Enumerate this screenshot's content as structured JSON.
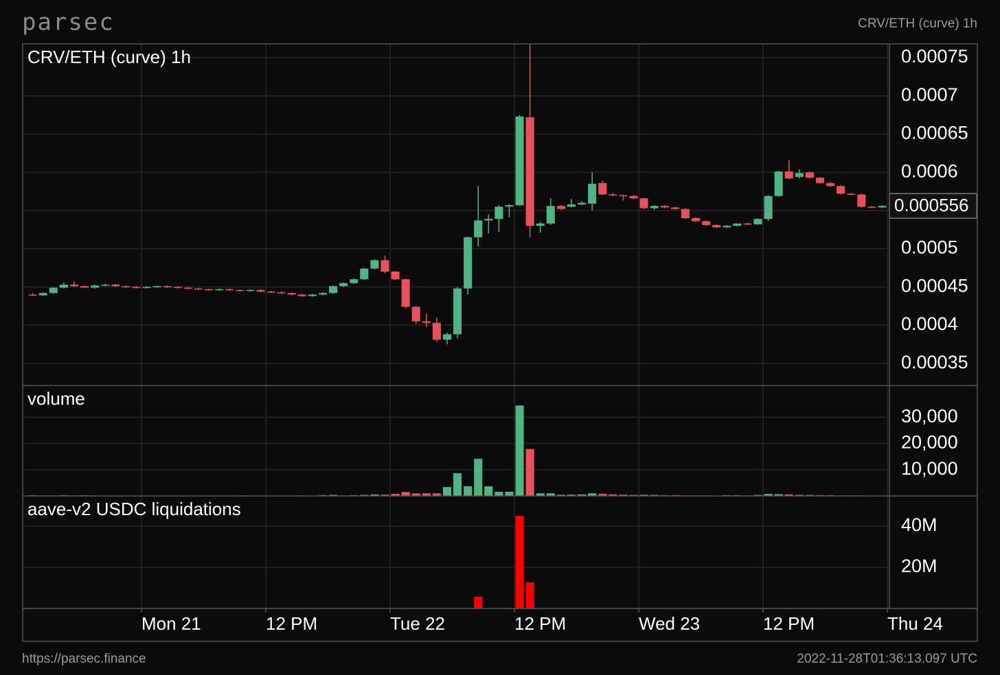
{
  "header": {
    "logo": "parsec",
    "pair": "CRV/ETH (curve) 1h"
  },
  "footer": {
    "url": "https://parsec.finance",
    "timestamp": "2022-11-28T01:36:13.097 UTC"
  },
  "xaxis": {
    "xlim": [
      -11.47,
      72.13
    ],
    "xticks": [
      {
        "value": 0,
        "label": "Mon 21"
      },
      {
        "value": 12,
        "label": "12 PM"
      },
      {
        "value": 24,
        "label": "Tue 22"
      },
      {
        "value": 36,
        "label": "12 PM"
      },
      {
        "value": 48,
        "label": "Wed 23"
      },
      {
        "value": 60,
        "label": "12 PM"
      },
      {
        "value": 72,
        "label": "Thu 24"
      }
    ]
  },
  "chart_data": [
    {
      "type": "candlestick",
      "title": "CRV/ETH (curve) 1h",
      "up_color": "#4fb383",
      "down_color": "#e8505b",
      "grid": true,
      "ylim": [
        0.000321,
        0.000768
      ],
      "yticks": [
        0.00035,
        0.0004,
        0.00045,
        0.0005,
        0.00055,
        0.0006,
        0.00065,
        0.0007,
        0.00075
      ],
      "last_price": 0.000556,
      "x": [
        -11,
        -10,
        -9,
        -8,
        -7,
        -6,
        -5,
        -4,
        -3,
        -2,
        -1,
        0,
        1,
        2,
        3,
        4,
        5,
        6,
        7,
        8,
        9,
        10,
        11,
        12,
        13,
        14,
        15,
        16,
        17,
        18,
        19,
        20,
        21,
        22,
        23,
        24,
        25,
        26,
        27,
        28,
        29,
        30,
        31,
        32,
        33,
        34,
        35,
        36,
        37,
        38,
        39,
        40,
        41,
        42,
        43,
        44,
        45,
        46,
        47,
        48,
        49,
        50,
        51,
        52,
        53,
        54,
        55,
        56,
        57,
        58,
        59,
        60,
        61,
        62,
        63,
        64,
        65,
        66,
        67,
        68,
        69,
        70,
        71
      ],
      "open": [
        0.00044,
        0.000439,
        0.000442,
        0.000449,
        0.000453,
        0.000451,
        0.000449,
        0.000452,
        0.000453,
        0.000451,
        0.00045,
        0.000449,
        0.00045,
        0.000451,
        0.00045,
        0.000449,
        0.000448,
        0.000447,
        0.000446,
        0.000447,
        0.000446,
        0.000445,
        0.000446,
        0.000444,
        0.000443,
        0.000442,
        0.00044,
        0.000438,
        0.00044,
        0.000442,
        0.000451,
        0.000455,
        0.00046,
        0.000474,
        0.000485,
        0.00047,
        0.00046,
        0.000424,
        0.000405,
        0.000403,
        0.000381,
        0.000388,
        0.000448,
        0.000515,
        0.000537,
        0.000539,
        0.000555,
        0.000557,
        0.000672,
        0.00053,
        0.000533,
        0.000556,
        0.000555,
        0.000558,
        0.000559,
        0.000586,
        0.000571,
        0.00057,
        0.000569,
        0.000566,
        0.000553,
        0.000556,
        0.000554,
        0.000552,
        0.00054,
        0.000536,
        0.000531,
        0.000528,
        0.00053,
        0.000533,
        0.000532,
        0.000539,
        0.000569,
        0.000601,
        0.000594,
        0.0006,
        0.000593,
        0.000586,
        0.000582,
        0.000572,
        0.000571,
        0.000555,
        0.000554
      ],
      "high": [
        0.000442,
        0.000443,
        0.000449,
        0.000456,
        0.000457,
        0.000452,
        0.000453,
        0.000454,
        0.000454,
        0.000452,
        0.000451,
        0.000451,
        0.000452,
        0.000452,
        0.000451,
        0.00045,
        0.000449,
        0.000448,
        0.000448,
        0.000448,
        0.000447,
        0.000447,
        0.000447,
        0.000445,
        0.000444,
        0.000443,
        0.000441,
        0.000441,
        0.000443,
        0.000452,
        0.000456,
        0.000461,
        0.000475,
        0.000486,
        0.000491,
        0.000471,
        0.000461,
        0.000425,
        0.000415,
        0.00041,
        0.00039,
        0.00045,
        0.000516,
        0.000582,
        0.000545,
        0.000557,
        0.000558,
        0.000675,
        0.000768,
        0.000535,
        0.000566,
        0.000557,
        0.000565,
        0.000562,
        0.0006,
        0.000589,
        0.000573,
        0.000571,
        0.00057,
        0.000567,
        0.000557,
        0.000557,
        0.000555,
        0.000553,
        0.000541,
        0.000537,
        0.000532,
        0.000531,
        0.000533,
        0.000534,
        0.00054,
        0.00057,
        0.000602,
        0.000616,
        0.000604,
        0.000601,
        0.000594,
        0.000587,
        0.000583,
        0.000573,
        0.000572,
        0.000556,
        0.000557
      ],
      "low": [
        0.000438,
        0.000438,
        0.000441,
        0.000448,
        0.00045,
        0.000449,
        0.000448,
        0.000451,
        0.00045,
        0.000449,
        0.000448,
        0.000448,
        0.000449,
        0.000449,
        0.000448,
        0.000447,
        0.000446,
        0.000445,
        0.000445,
        0.000445,
        0.000444,
        0.000444,
        0.000443,
        0.000442,
        0.000441,
        0.000439,
        0.000437,
        0.000437,
        0.000439,
        0.000441,
        0.00045,
        0.000454,
        0.000459,
        0.000473,
        0.000468,
        0.000459,
        0.000422,
        0.000402,
        0.000398,
        0.000378,
        0.000375,
        0.000383,
        0.00044,
        0.000503,
        0.00052,
        0.000522,
        0.000541,
        0.000556,
        0.000515,
        0.000521,
        0.000531,
        0.000551,
        0.000554,
        0.000557,
        0.00055,
        0.00057,
        0.000569,
        0.000563,
        0.000565,
        0.000552,
        0.000551,
        0.000553,
        0.000551,
        0.000539,
        0.000535,
        0.00053,
        0.000527,
        0.000527,
        0.000529,
        0.000531,
        0.000531,
        0.000536,
        0.000568,
        0.000591,
        0.000592,
        0.000592,
        0.000585,
        0.000581,
        0.000571,
        0.00057,
        0.000554,
        0.000553,
        0.000553
      ],
      "close": [
        0.000439,
        0.000442,
        0.000449,
        0.000453,
        0.000451,
        0.000449,
        0.000452,
        0.000453,
        0.000451,
        0.00045,
        0.000449,
        0.00045,
        0.000451,
        0.00045,
        0.000449,
        0.000448,
        0.000447,
        0.000446,
        0.000447,
        0.000446,
        0.000445,
        0.000446,
        0.000444,
        0.000443,
        0.000442,
        0.00044,
        0.000438,
        0.00044,
        0.000442,
        0.000451,
        0.000455,
        0.00046,
        0.000474,
        0.000485,
        0.00047,
        0.00046,
        0.000424,
        0.000405,
        0.000403,
        0.000381,
        0.000388,
        0.000448,
        0.000515,
        0.000537,
        0.000539,
        0.000555,
        0.000557,
        0.000673,
        0.00053,
        0.000533,
        0.000556,
        0.000552,
        0.000558,
        0.00056,
        0.000585,
        0.000571,
        0.00057,
        0.000569,
        0.000566,
        0.000553,
        0.000556,
        0.000554,
        0.000552,
        0.00054,
        0.000536,
        0.000531,
        0.000528,
        0.00053,
        0.000533,
        0.000532,
        0.000539,
        0.000569,
        0.000601,
        0.000592,
        0.000599,
        0.000593,
        0.000586,
        0.000582,
        0.000572,
        0.000571,
        0.000555,
        0.000554,
        0.000556
      ]
    },
    {
      "type": "volume",
      "title": "volume",
      "grid": true,
      "ylim": [
        0,
        42100
      ],
      "yticks": [
        {
          "value": 10000,
          "label": "10,000"
        },
        {
          "value": 20000,
          "label": "20,000"
        },
        {
          "value": 30000,
          "label": "30,000"
        }
      ],
      "values": [
        300,
        200,
        200,
        300,
        200,
        250,
        200,
        100,
        100,
        100,
        100,
        100,
        100,
        100,
        100,
        100,
        100,
        100,
        100,
        100,
        200,
        100,
        100,
        100,
        100,
        100,
        200,
        100,
        300,
        400,
        200,
        300,
        400,
        600,
        500,
        800,
        1500,
        1000,
        1000,
        1000,
        3400,
        8700,
        3700,
        14200,
        3700,
        1600,
        1600,
        34500,
        17900,
        1000,
        1000,
        500,
        500,
        600,
        1000,
        800,
        600,
        500,
        400,
        500,
        400,
        300,
        300,
        200,
        200,
        200,
        100,
        300,
        300,
        200,
        400,
        800,
        700,
        600,
        400,
        400,
        300,
        300,
        200,
        200,
        200,
        100,
        100
      ]
    },
    {
      "type": "bar",
      "title": "aave-v2 USDC liquidations",
      "color": "#ff0000",
      "grid": true,
      "ylim": [
        0,
        54700000
      ],
      "yticks": [
        {
          "value": 20000000,
          "label": "20M"
        },
        {
          "value": 40000000,
          "label": "40M"
        }
      ],
      "x": [
        32,
        36,
        37
      ],
      "values": [
        5700000,
        45000000,
        12700000
      ]
    }
  ]
}
